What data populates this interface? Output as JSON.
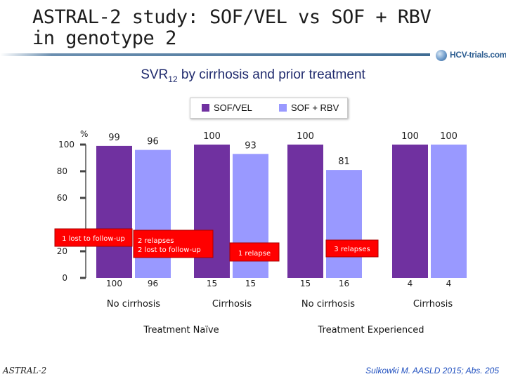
{
  "slide": {
    "title_line1": "ASTRAL-2 study: SOF/VEL vs SOF + RBV",
    "title_line2": "in genotype 2",
    "logo_text": "HCV-trials.com",
    "footer_left": "ASTRAL-2",
    "footer_right": "Sulkowki M. AASLD 2015; Abs. 205"
  },
  "chart_data": {
    "type": "bar",
    "title_main": "SVR",
    "title_sub": "12",
    "title_rest": " by cirrhosis and prior treatment",
    "ylabel": "%",
    "ylim": [
      0,
      100
    ],
    "yticks": [
      0,
      20,
      60,
      80,
      100
    ],
    "legend_position": "top-center",
    "colors": {
      "SOF/VEL": "#7031a0",
      "SOF + RBV": "#9999ff"
    },
    "series": [
      {
        "name": "SOF/VEL"
      },
      {
        "name": "SOF + RBV"
      }
    ],
    "bars": [
      {
        "series": "SOF/VEL",
        "value": 99,
        "n": "100"
      },
      {
        "series": "SOF + RBV",
        "value": 96,
        "n": "96"
      },
      {
        "series": "SOF/VEL",
        "value": 100,
        "n": "15"
      },
      {
        "series": "SOF + RBV",
        "value": 93,
        "n": "15"
      },
      {
        "series": "SOF/VEL",
        "value": 100,
        "n": "15"
      },
      {
        "series": "SOF + RBV",
        "value": 81,
        "n": "16"
      },
      {
        "series": "SOF/VEL",
        "value": 100,
        "n": "4"
      },
      {
        "series": "SOF + RBV",
        "value": 100,
        "n": "4"
      }
    ],
    "subgroups": [
      "No cirrhosis",
      "Cirrhosis",
      "No cirrhosis",
      "Cirrhosis"
    ],
    "groups": [
      "Treatment Naïve",
      "Treatment Experienced"
    ],
    "annotations": [
      "1 lost to follow-up",
      "2 relapses",
      "2 lost to follow-up",
      "1 relapse",
      "3 relapses"
    ]
  }
}
